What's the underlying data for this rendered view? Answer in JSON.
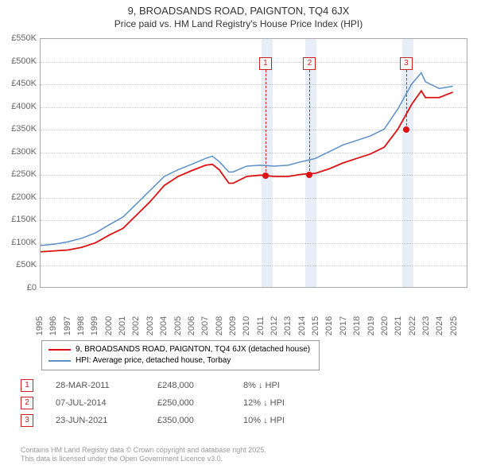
{
  "title": "9, BROADSANDS ROAD, PAIGNTON, TQ4 6JX",
  "subtitle": "Price paid vs. HM Land Registry's House Price Index (HPI)",
  "chart": {
    "type": "line",
    "background_color": "#ffffff",
    "border_color": "#aaaaaa",
    "grid_color": "#cccccc",
    "y": {
      "min": 0,
      "max": 550,
      "ticks": [
        0,
        50,
        100,
        150,
        200,
        250,
        300,
        350,
        400,
        450,
        500,
        550
      ],
      "labels": [
        "£0",
        "£50K",
        "£100K",
        "£150K",
        "£200K",
        "£250K",
        "£300K",
        "£350K",
        "£400K",
        "£450K",
        "£500K",
        "£550K"
      ],
      "label_fontsize": 11,
      "label_color": "#666666"
    },
    "x": {
      "min": 1995,
      "max": 2026,
      "ticks": [
        1995,
        1996,
        1997,
        1998,
        1999,
        2000,
        2001,
        2002,
        2003,
        2004,
        2005,
        2006,
        2007,
        2008,
        2009,
        2010,
        2011,
        2012,
        2013,
        2014,
        2015,
        2016,
        2017,
        2018,
        2019,
        2020,
        2021,
        2022,
        2023,
        2024,
        2025
      ],
      "label_fontsize": 11,
      "label_color": "#666666"
    },
    "shaded_bands": [
      {
        "from": 2011.0,
        "to": 2011.8,
        "color": "rgba(120,160,210,0.18)"
      },
      {
        "from": 2014.2,
        "to": 2015.0,
        "color": "rgba(120,160,210,0.18)"
      },
      {
        "from": 2021.2,
        "to": 2022.0,
        "color": "rgba(120,160,210,0.18)"
      }
    ],
    "series": [
      {
        "name": "9, BROADSANDS ROAD, PAIGNTON, TQ4 6JX (detached house)",
        "color": "#dd1111",
        "line_width": 1.8,
        "data": [
          [
            1995,
            78
          ],
          [
            1996,
            80
          ],
          [
            1997,
            82
          ],
          [
            1998,
            88
          ],
          [
            1999,
            98
          ],
          [
            2000,
            115
          ],
          [
            2001,
            130
          ],
          [
            2002,
            160
          ],
          [
            2003,
            190
          ],
          [
            2004,
            225
          ],
          [
            2005,
            245
          ],
          [
            2006,
            258
          ],
          [
            2007,
            270
          ],
          [
            2007.5,
            272
          ],
          [
            2008,
            260
          ],
          [
            2008.7,
            230
          ],
          [
            2009,
            230
          ],
          [
            2010,
            245
          ],
          [
            2011,
            248
          ],
          [
            2012,
            245
          ],
          [
            2013,
            245
          ],
          [
            2014,
            250
          ],
          [
            2015,
            252
          ],
          [
            2016,
            262
          ],
          [
            2017,
            275
          ],
          [
            2018,
            285
          ],
          [
            2019,
            295
          ],
          [
            2020,
            310
          ],
          [
            2021,
            350
          ],
          [
            2022,
            405
          ],
          [
            2022.7,
            435
          ],
          [
            2023,
            420
          ],
          [
            2024,
            420
          ],
          [
            2025,
            432
          ]
        ]
      },
      {
        "name": "HPI: Average price, detached house, Torbay",
        "color": "#5b8fc7",
        "line_width": 1.5,
        "data": [
          [
            1995,
            92
          ],
          [
            1996,
            95
          ],
          [
            1997,
            100
          ],
          [
            1998,
            108
          ],
          [
            1999,
            120
          ],
          [
            2000,
            138
          ],
          [
            2001,
            155
          ],
          [
            2002,
            185
          ],
          [
            2003,
            215
          ],
          [
            2004,
            245
          ],
          [
            2005,
            260
          ],
          [
            2006,
            272
          ],
          [
            2007,
            285
          ],
          [
            2007.5,
            290
          ],
          [
            2008,
            278
          ],
          [
            2008.7,
            255
          ],
          [
            2009,
            255
          ],
          [
            2010,
            268
          ],
          [
            2011,
            270
          ],
          [
            2012,
            268
          ],
          [
            2013,
            270
          ],
          [
            2014,
            278
          ],
          [
            2015,
            285
          ],
          [
            2016,
            300
          ],
          [
            2017,
            315
          ],
          [
            2018,
            325
          ],
          [
            2019,
            335
          ],
          [
            2020,
            350
          ],
          [
            2021,
            395
          ],
          [
            2022,
            450
          ],
          [
            2022.7,
            475
          ],
          [
            2023,
            455
          ],
          [
            2024,
            440
          ],
          [
            2025,
            445
          ]
        ]
      }
    ],
    "markers": [
      {
        "num": "1",
        "x": 2011.3,
        "y": 248,
        "box_top_y": 510,
        "dot_color": "#dd1111"
      },
      {
        "num": "2",
        "x": 2014.5,
        "y": 250,
        "box_top_y": 510,
        "dot_color": "#dd1111"
      },
      {
        "num": "3",
        "x": 2021.5,
        "y": 350,
        "box_top_y": 510,
        "dot_color": "#dd1111"
      }
    ],
    "marker_box_border": "#cc2222",
    "marker_box_text_color": "#cc2222"
  },
  "legend": {
    "border_color": "#999999",
    "fontsize": 10,
    "items": [
      {
        "color": "#dd1111",
        "label": "9, BROADSANDS ROAD, PAIGNTON, TQ4 6JX (detached house)"
      },
      {
        "color": "#5b8fc7",
        "label": "HPI: Average price, detached house, Torbay"
      }
    ]
  },
  "transactions": [
    {
      "num": "1",
      "date": "28-MAR-2011",
      "price": "£248,000",
      "hpi": "8% ↓ HPI"
    },
    {
      "num": "2",
      "date": "07-JUL-2014",
      "price": "£250,000",
      "hpi": "12% ↓ HPI"
    },
    {
      "num": "3",
      "date": "23-JUN-2021",
      "price": "£350,000",
      "hpi": "10% ↓ HPI"
    }
  ],
  "footnote_line1": "Contains HM Land Registry data © Crown copyright and database right 2025.",
  "footnote_line2": "This data is licensed under the Open Government Licence v3.0."
}
